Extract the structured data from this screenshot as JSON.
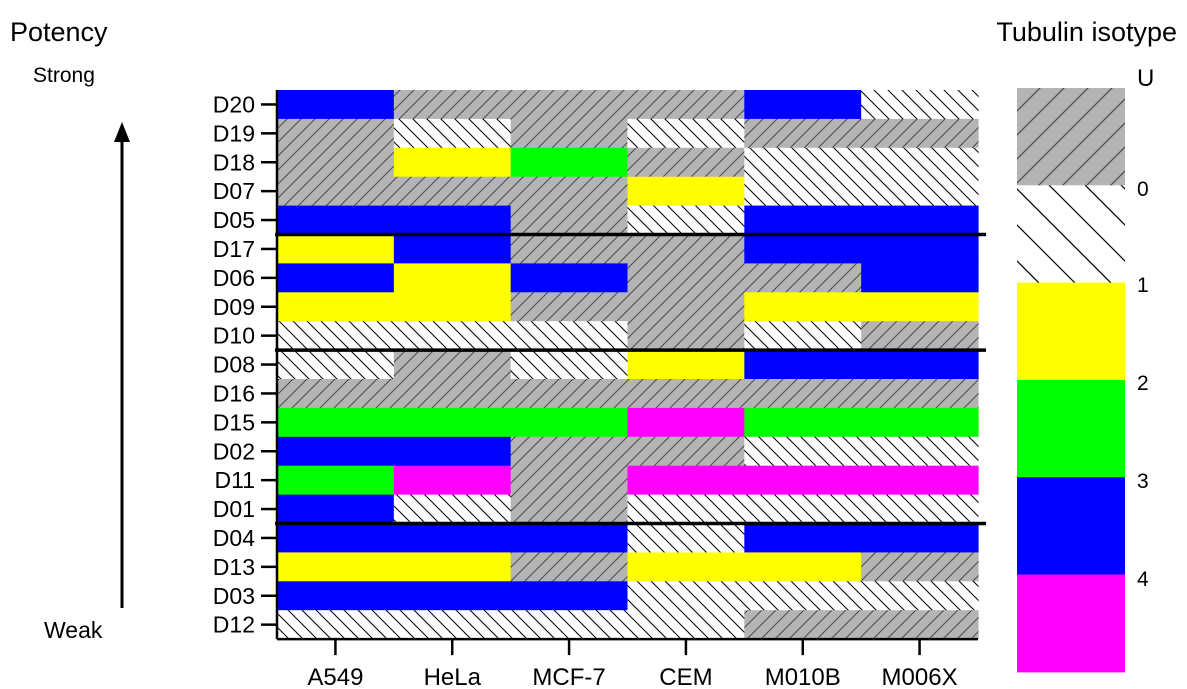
{
  "header": {
    "potency_title": "Potency",
    "potency_strong": "Strong",
    "potency_weak": "Weak",
    "legend_title": "Tubulin isotype"
  },
  "colors": {
    "U": "#b4b4b4",
    "0": "#ffffff",
    "1": "#ffff00",
    "2": "#00ff00",
    "3": "#0000ff",
    "4": "#ff00ff"
  },
  "legend": {
    "entries": [
      {
        "key": "U",
        "label": "U",
        "hatch": "forward"
      },
      {
        "key": "0",
        "label": "0",
        "hatch": "back"
      },
      {
        "key": "1",
        "label": "1",
        "hatch": "none"
      },
      {
        "key": "2",
        "label": "2",
        "hatch": "none"
      },
      {
        "key": "3",
        "label": "3",
        "hatch": "none"
      },
      {
        "key": "4",
        "label": "4",
        "hatch": "none"
      }
    ]
  },
  "chart_data": {
    "type": "heatmap",
    "columns": [
      "A549",
      "HeLa",
      "MCF-7",
      "CEM",
      "M010B",
      "M006X"
    ],
    "rows": [
      "D20",
      "D19",
      "D18",
      "D07",
      "D05",
      "D17",
      "D06",
      "D09",
      "D10",
      "D08",
      "D16",
      "D15",
      "D02",
      "D11",
      "D01",
      "D04",
      "D13",
      "D03",
      "D12"
    ],
    "values": [
      [
        "3",
        "U",
        "U",
        "U",
        "3",
        "0"
      ],
      [
        "U",
        "0",
        "U",
        "0",
        "U",
        "U"
      ],
      [
        "U",
        "1",
        "2",
        "U",
        "0",
        "0"
      ],
      [
        "U",
        "U",
        "U",
        "1",
        "0",
        "0"
      ],
      [
        "3",
        "3",
        "U",
        "0",
        "3",
        "3"
      ],
      [
        "1",
        "3",
        "U",
        "U",
        "3",
        "3"
      ],
      [
        "3",
        "1",
        "3",
        "U",
        "U",
        "3"
      ],
      [
        "1",
        "1",
        "U",
        "U",
        "1",
        "1"
      ],
      [
        "0",
        "0",
        "0",
        "U",
        "0",
        "U"
      ],
      [
        "0",
        "U",
        "0",
        "1",
        "3",
        "3"
      ],
      [
        "U",
        "U",
        "U",
        "U",
        "U",
        "U"
      ],
      [
        "2",
        "2",
        "2",
        "4",
        "2",
        "2"
      ],
      [
        "3",
        "3",
        "U",
        "U",
        "0",
        "0"
      ],
      [
        "2",
        "4",
        "U",
        "4",
        "4",
        "4"
      ],
      [
        "3",
        "0",
        "U",
        "0",
        "0",
        "0"
      ],
      [
        "3",
        "3",
        "3",
        "0",
        "3",
        "3"
      ],
      [
        "1",
        "1",
        "U",
        "1",
        "1",
        "U"
      ],
      [
        "3",
        "3",
        "3",
        "0",
        "0",
        "0"
      ],
      [
        "0",
        "0",
        "0",
        "0",
        "U",
        "U"
      ]
    ],
    "group_dividers_after_rows": [
      "D05",
      "D10",
      "D01"
    ],
    "legend_placement": "right",
    "grid": false
  }
}
